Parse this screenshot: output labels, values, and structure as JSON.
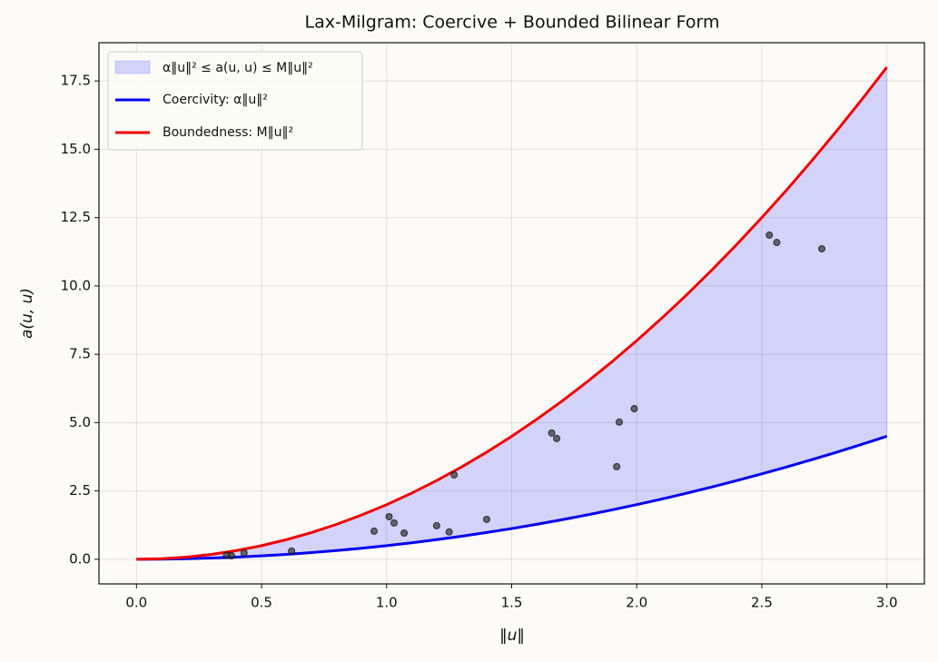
{
  "chart_data": {
    "type": "line",
    "title": "Lax-Milgram: Coercive + Bounded Bilinear Form",
    "x_label": "‖u‖",
    "y_label": "a(u, u)",
    "x": [
      0,
      0.1,
      0.2,
      0.3,
      0.4,
      0.5,
      0.6,
      0.7,
      0.8,
      0.9,
      1.0,
      1.1,
      1.2,
      1.3,
      1.4,
      1.5,
      1.6,
      1.7,
      1.8,
      1.9,
      2.0,
      2.1,
      2.2,
      2.3,
      2.4,
      2.5,
      2.6,
      2.7,
      2.8,
      2.9,
      3.0
    ],
    "band": {
      "name": "α‖u‖² ≤ a(u, u) ≤ M‖u‖²",
      "color": "#0000ff",
      "alpha": 0.16
    },
    "series": [
      {
        "name": "Coercivity: α‖u‖²",
        "color": "#0000ee",
        "values": [
          0,
          0.005,
          0.02,
          0.045,
          0.08,
          0.125,
          0.18,
          0.245,
          0.32,
          0.405,
          0.5,
          0.605,
          0.72,
          0.845,
          0.98,
          1.125,
          1.28,
          1.445,
          1.62,
          1.805,
          2,
          2.205,
          2.42,
          2.645,
          2.88,
          3.125,
          3.38,
          3.645,
          3.92,
          4.205,
          4.5
        ]
      },
      {
        "name": "Boundedness: M‖u‖²",
        "color": "#ee0000",
        "values": [
          0,
          0.02,
          0.08,
          0.18,
          0.32,
          0.5,
          0.72,
          0.98,
          1.28,
          1.62,
          2,
          2.42,
          2.88,
          3.38,
          3.92,
          4.5,
          5.12,
          5.78,
          6.48,
          7.22,
          8,
          8.82,
          9.68,
          10.58,
          11.52,
          12.5,
          13.52,
          14.58,
          15.68,
          16.82,
          18
        ]
      }
    ],
    "points": {
      "color": "#333333",
      "x": [
        0.36,
        0.38,
        0.43,
        0.62,
        0.95,
        1.01,
        1.03,
        1.07,
        1.2,
        1.25,
        1.27,
        1.4,
        1.66,
        1.68,
        1.92,
        1.93,
        1.99,
        2.53,
        2.56,
        2.74
      ],
      "y": [
        0.15,
        0.13,
        0.23,
        0.3,
        1.03,
        1.56,
        1.33,
        0.96,
        1.23,
        1.0,
        3.09,
        1.46,
        4.62,
        4.42,
        3.39,
        5.02,
        5.51,
        11.86,
        11.59,
        11.36
      ]
    },
    "xlim": [
      -0.15,
      3.15
    ],
    "ylim": [
      -0.9,
      18.9
    ],
    "xticks": [
      {
        "value": 0,
        "label": "0.0"
      },
      0.5,
      {
        "value": 1,
        "label": "1.0"
      },
      1.5,
      {
        "value": 2,
        "label": "2.0"
      },
      2.5,
      {
        "value": 3,
        "label": "3.0"
      }
    ],
    "yticks": [
      {
        "value": 0,
        "label": "0.0"
      },
      2.5,
      {
        "value": 5,
        "label": "5.0"
      },
      7.5,
      {
        "value": 10,
        "label": "10.0"
      },
      12.5,
      {
        "value": 15,
        "label": "15.0"
      },
      17.5
    ],
    "grid": true,
    "legend": "upper left"
  }
}
